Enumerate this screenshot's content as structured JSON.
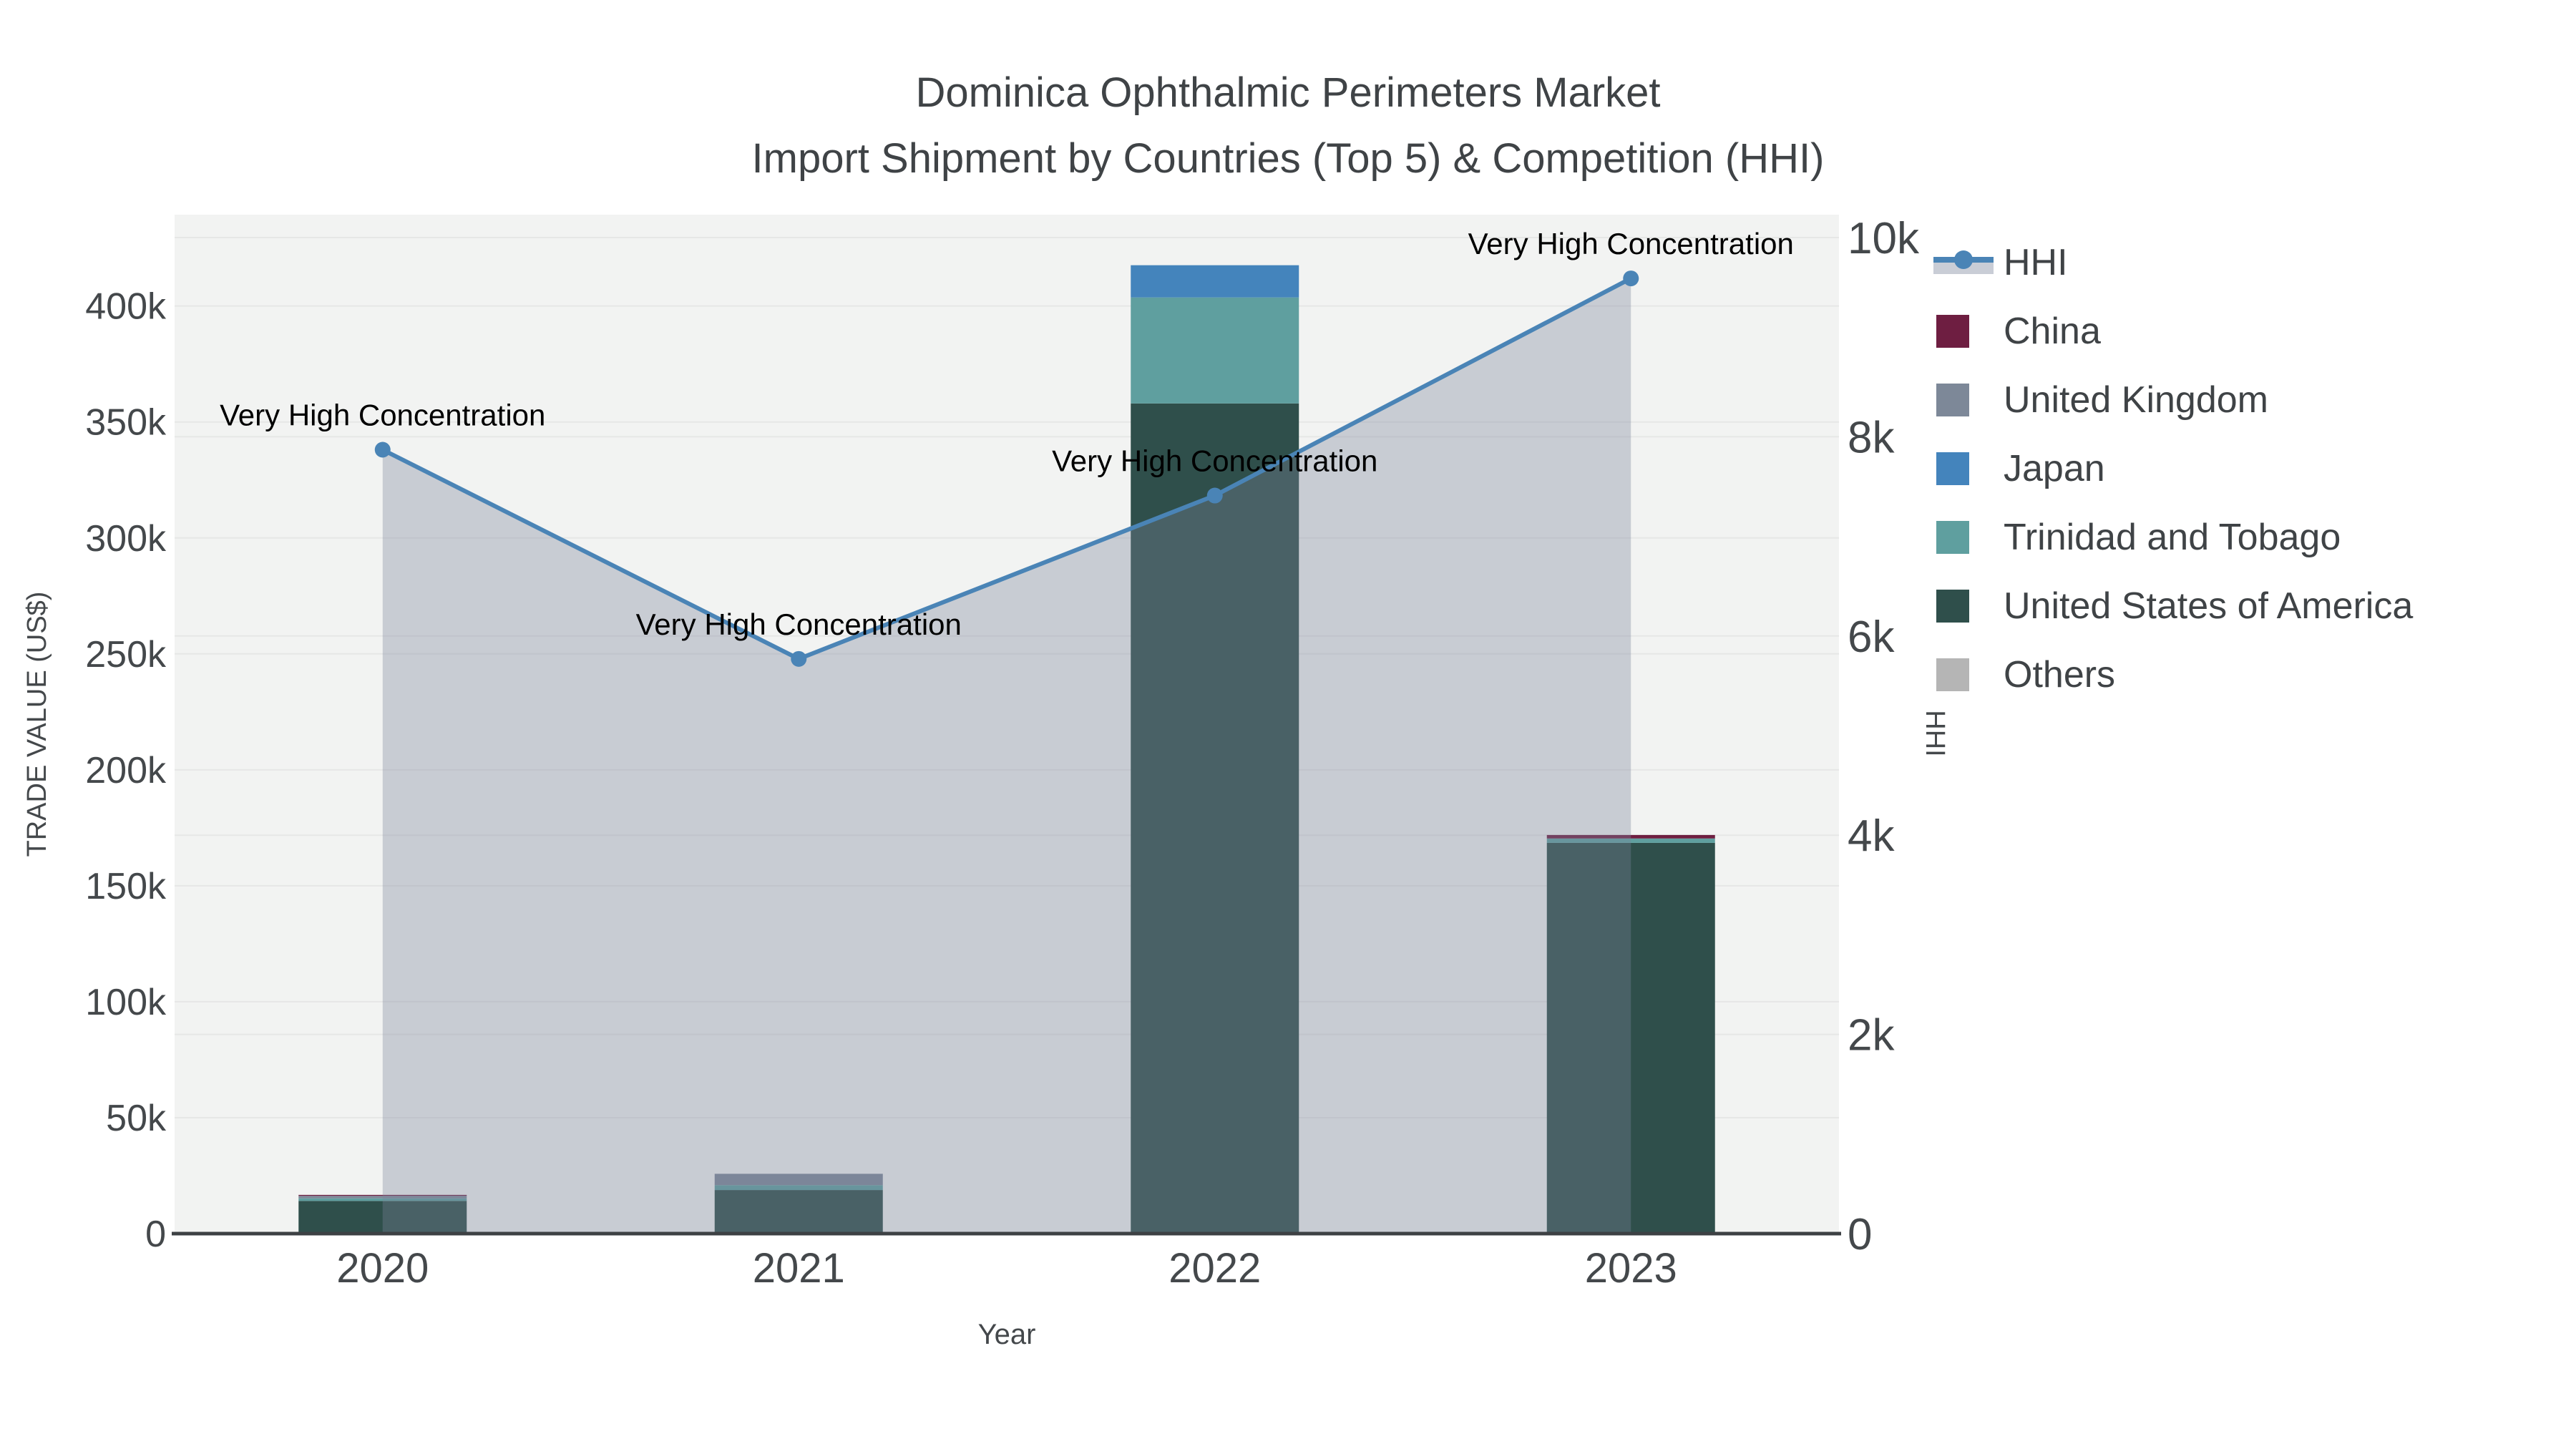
{
  "title": {
    "line1": "Dominica Ophthalmic Perimeters Market",
    "line2": "Import Shipment by Countries (Top 5) & Competition (HHI)"
  },
  "chart_data": {
    "type": "combo-stacked-bar-line",
    "categories": [
      "2020",
      "2021",
      "2022",
      "2023"
    ],
    "xlabel": "Year",
    "ylabel_left": "TRADE VALUE (US$)",
    "ylabel_right": "HHI",
    "ylim_left": [
      0,
      439400
    ],
    "ylim_right": [
      0,
      10230
    ],
    "yticks_left": {
      "values": [
        0,
        50000,
        100000,
        150000,
        200000,
        250000,
        300000,
        350000,
        400000
      ],
      "labels": [
        "0",
        "50k",
        "100k",
        "150k",
        "200k",
        "250k",
        "300k",
        "350k",
        "400k"
      ]
    },
    "yticks_right": {
      "values": [
        0,
        2000,
        4000,
        6000,
        8000,
        10000
      ],
      "labels": [
        "0",
        "2k",
        "4k",
        "6k",
        "8k",
        "10k"
      ]
    },
    "bar_series": [
      {
        "name": "China",
        "color": "#6e1e41",
        "values": [
          400,
          0,
          0,
          1500
        ]
      },
      {
        "name": "United Kingdom",
        "color": "#7d8898",
        "values": [
          1100,
          4900,
          0,
          0
        ]
      },
      {
        "name": "Japan",
        "color": "#4484bc",
        "values": [
          0,
          0,
          13900,
          0
        ]
      },
      {
        "name": "Trinidad and Tobago",
        "color": "#5f9f9f",
        "values": [
          1100,
          2100,
          45700,
          1900
        ]
      },
      {
        "name": "United States of America",
        "color": "#2f4f4b",
        "values": [
          14100,
          18800,
          358000,
          168500
        ]
      },
      {
        "name": "Others",
        "color": "#b5b5b5",
        "values": [
          0,
          0,
          0,
          0
        ]
      }
    ],
    "stack_order_bottom_to_top": [
      "United States of America",
      "Trinidad and Tobago",
      "Japan",
      "United Kingdom",
      "China",
      "Others"
    ],
    "bar_totals": [
      16700,
      25800,
      417600,
      171900
    ],
    "line_series": {
      "name": "HHI",
      "color": "#4a84b6",
      "axis": "right",
      "values": [
        7870,
        5770,
        7410,
        9590
      ]
    },
    "annotations": [
      {
        "year": "2020",
        "text": "Very High Concentration"
      },
      {
        "year": "2021",
        "text": "Very High Concentration"
      },
      {
        "year": "2022",
        "text": "Very High Concentration"
      },
      {
        "year": "2023",
        "text": "Very High Concentration"
      }
    ],
    "legend_labels": [
      "HHI",
      "China",
      "United Kingdom",
      "Japan",
      "Trinidad and Tobago",
      "United States of America",
      "Others"
    ],
    "colors": {
      "plot_bg": "#f2f3f2",
      "grid": "#e6e7e6",
      "axis_line": "#3d4144",
      "tick_text": "#44484b",
      "annotation_text": "#000000",
      "area_fill": "rgba(124,131,156,0.35)",
      "legend_area_swatch": "#c9cdd6"
    },
    "legend_position": "right",
    "grid": true
  }
}
